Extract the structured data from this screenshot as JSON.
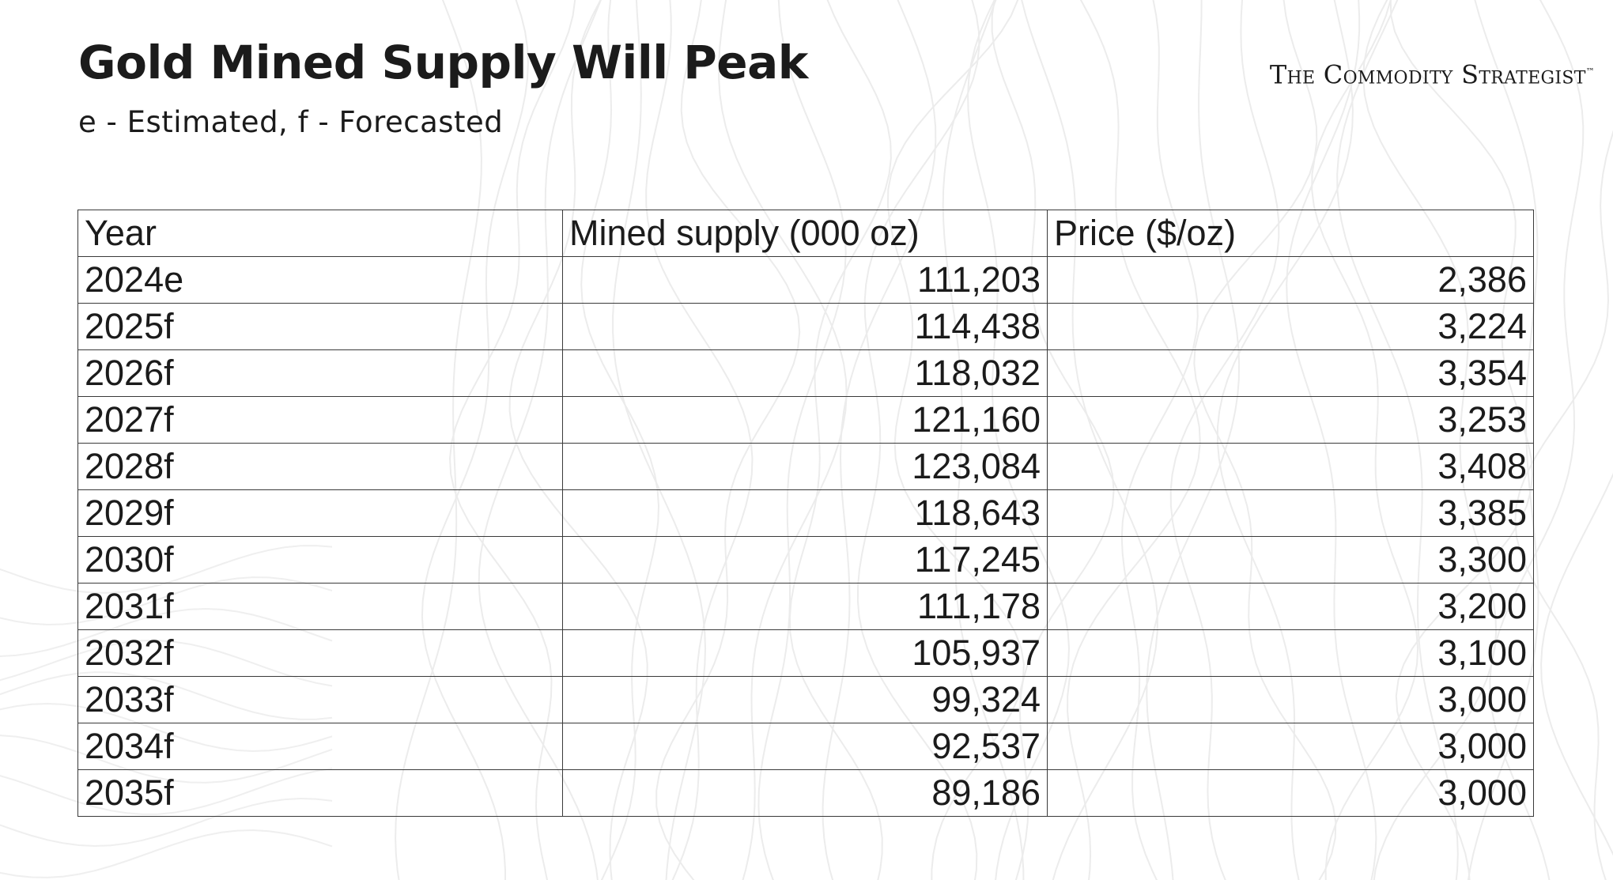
{
  "title": "Gold Mined Supply Will Peak",
  "subtitle": "e - Estimated, f - Forecasted",
  "brand": {
    "name": "The Commodity Strategist",
    "mark": "™"
  },
  "chart_data": {
    "type": "table",
    "columns": [
      "Year",
      "Mined supply (000 oz)",
      "Price ($/oz)"
    ],
    "rows": [
      [
        "2024e",
        "111,203",
        "2,386"
      ],
      [
        "2025f",
        "114,438",
        "3,224"
      ],
      [
        "2026f",
        "118,032",
        "3,354"
      ],
      [
        "2027f",
        "121,160",
        "3,253"
      ],
      [
        "2028f",
        "123,084",
        "3,408"
      ],
      [
        "2029f",
        "118,643",
        "3,385"
      ],
      [
        "2030f",
        "117,245",
        "3,300"
      ],
      [
        "2031f",
        "111,178",
        "3,200"
      ],
      [
        "2032f",
        "105,937",
        "3,100"
      ],
      [
        "2033f",
        "99,324",
        "3,000"
      ],
      [
        "2034f",
        "92,537",
        "3,000"
      ],
      [
        "2035f",
        "89,186",
        "3,000"
      ]
    ]
  }
}
